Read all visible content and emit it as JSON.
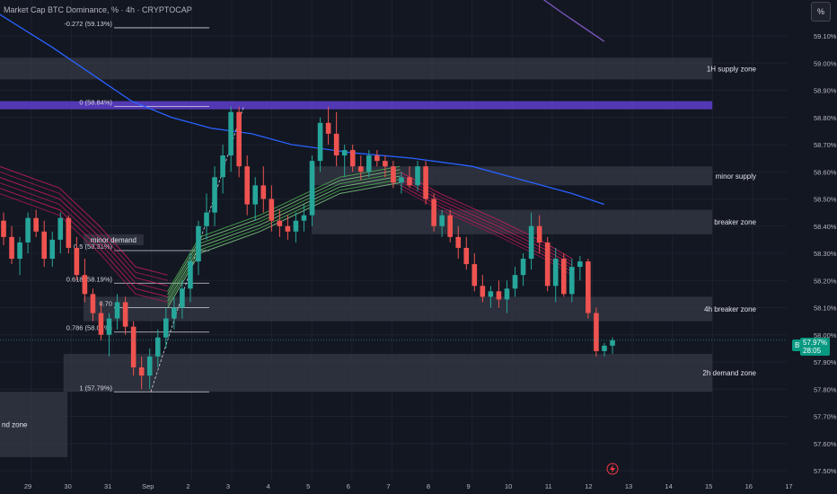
{
  "header": {
    "title": "Market Cap BTC Dominance, % · 4h · CRYPTOCAP",
    "percent_button": "%"
  },
  "price_tag": {
    "symbol": "BTC.D",
    "price": "57.97%",
    "countdown": "28:05"
  },
  "colors": {
    "background": "#131722",
    "bull": "#26a69a",
    "bear": "#ef5350",
    "zone": "#363a45",
    "supply_zone": "#5b3cc4",
    "ma_line": "#2962ff",
    "ma_long": "#7e57c2"
  },
  "chart_data": {
    "type": "candlestick",
    "title": "Market Cap BTC Dominance, % · 4h · CRYPTOCAP",
    "ylim": [
      57.5,
      59.2
    ],
    "y_ticks": [
      "59.10%",
      "59.00%",
      "58.90%",
      "58.80%",
      "58.70%",
      "58.60%",
      "58.50%",
      "58.40%",
      "58.30%",
      "58.20%",
      "58.10%",
      "58.00%",
      "57.90%",
      "57.80%",
      "57.70%",
      "57.60%",
      "57.50%"
    ],
    "y_tick_values": [
      59.1,
      59.0,
      58.9,
      58.8,
      58.7,
      58.6,
      58.5,
      58.4,
      58.3,
      58.2,
      58.1,
      58.0,
      57.9,
      57.8,
      57.7,
      57.6,
      57.5
    ],
    "x_ticks": [
      "29",
      "30",
      "31",
      "Sep",
      "2",
      "3",
      "4",
      "5",
      "6",
      "7",
      "8",
      "9",
      "10",
      "11",
      "12",
      "13",
      "14",
      "15",
      "16",
      "17"
    ],
    "zones": [
      {
        "label": "1H supply zone",
        "y_top": 59.02,
        "y_bot": 58.94,
        "x_start": -1,
        "x_end": 17,
        "color": "zone"
      },
      {
        "label": "",
        "y_top": 58.86,
        "y_bot": 58.83,
        "x_start": -1,
        "x_end": 17,
        "color": "supply"
      },
      {
        "label": "minor supply",
        "y_top": 58.62,
        "y_bot": 58.55,
        "x_start": 7.0,
        "x_end": 17,
        "color": "zone"
      },
      {
        "label": "breaker zone",
        "y_top": 58.46,
        "y_bot": 58.37,
        "x_start": 7.0,
        "x_end": 17,
        "color": "zone"
      },
      {
        "label": "minor demand",
        "y_top": 58.37,
        "y_bot": 58.33,
        "x_start": 1.3,
        "x_end": 2.8,
        "color": "zone"
      },
      {
        "label": "4h breaker zone",
        "y_top": 58.14,
        "y_bot": 58.05,
        "x_start": 1.3,
        "x_end": 17,
        "color": "zone"
      },
      {
        "label": "2h demand zone",
        "y_top": 57.93,
        "y_bot": 57.79,
        "x_start": 0.8,
        "x_end": 17,
        "color": "zone"
      },
      {
        "label": "nd zone",
        "y_top": 57.79,
        "y_bot": 57.55,
        "x_start": -1,
        "x_end": 0.9,
        "color": "zone"
      }
    ],
    "fib_levels": [
      {
        "label": "-0.272 (59.13%)",
        "value": 59.13
      },
      {
        "label": "0 (58.84%)",
        "value": 58.84
      },
      {
        "label": "0.5 (58.31%)",
        "value": 58.31
      },
      {
        "label": "0.618 (58.19%)",
        "value": 58.19
      },
      {
        "label": "0.70",
        "value": 58.1
      },
      {
        "label": "0.786 (58.01%)",
        "value": 58.01
      },
      {
        "label": "1 (57.79%)",
        "value": 57.79
      }
    ],
    "candles": [
      [
        58.42,
        58.45,
        58.33,
        58.36
      ],
      [
        58.36,
        58.4,
        58.26,
        58.28
      ],
      [
        58.28,
        58.36,
        58.22,
        58.34
      ],
      [
        58.34,
        58.45,
        58.3,
        58.43
      ],
      [
        58.43,
        58.46,
        58.36,
        58.38
      ],
      [
        58.38,
        58.42,
        58.25,
        58.28
      ],
      [
        58.28,
        58.38,
        58.25,
        58.35
      ],
      [
        58.35,
        58.45,
        58.3,
        58.43
      ],
      [
        58.43,
        58.44,
        58.3,
        58.32
      ],
      [
        58.32,
        58.36,
        58.2,
        58.22
      ],
      [
        58.22,
        58.28,
        58.12,
        58.15
      ],
      [
        58.15,
        58.17,
        58.05,
        58.08
      ],
      [
        58.08,
        58.12,
        57.98,
        58.0
      ],
      [
        58.0,
        58.08,
        57.92,
        58.06
      ],
      [
        58.06,
        58.15,
        58.02,
        58.12
      ],
      [
        58.12,
        58.14,
        58.0,
        58.03
      ],
      [
        58.03,
        58.05,
        57.85,
        57.88
      ],
      [
        57.88,
        57.92,
        57.8,
        57.85
      ],
      [
        57.85,
        57.95,
        57.8,
        57.92
      ],
      [
        57.92,
        58.02,
        57.88,
        57.99
      ],
      [
        57.99,
        58.1,
        57.95,
        58.06
      ],
      [
        58.06,
        58.14,
        58.02,
        58.1
      ],
      [
        58.1,
        58.2,
        58.06,
        58.17
      ],
      [
        58.17,
        58.3,
        58.12,
        58.27
      ],
      [
        58.27,
        58.42,
        58.22,
        58.4
      ],
      [
        58.4,
        58.52,
        58.35,
        58.45
      ],
      [
        58.45,
        58.62,
        58.4,
        58.58
      ],
      [
        58.58,
        58.7,
        58.52,
        58.66
      ],
      [
        58.66,
        58.84,
        58.6,
        58.82
      ],
      [
        58.82,
        58.84,
        58.58,
        58.62
      ],
      [
        58.62,
        58.66,
        58.44,
        58.48
      ],
      [
        58.48,
        58.58,
        58.42,
        58.55
      ],
      [
        58.55,
        58.62,
        58.45,
        58.5
      ],
      [
        58.5,
        58.55,
        58.38,
        58.42
      ],
      [
        58.42,
        58.46,
        58.36,
        58.4
      ],
      [
        58.4,
        58.44,
        58.35,
        58.38
      ],
      [
        58.38,
        58.45,
        58.34,
        58.42
      ],
      [
        58.42,
        58.48,
        58.38,
        58.44
      ],
      [
        58.44,
        58.66,
        58.4,
        58.64
      ],
      [
        58.64,
        58.8,
        58.6,
        58.78
      ],
      [
        58.78,
        58.84,
        58.7,
        58.74
      ],
      [
        58.74,
        58.82,
        58.62,
        58.66
      ],
      [
        58.66,
        58.7,
        58.58,
        58.68
      ],
      [
        58.68,
        58.7,
        58.6,
        58.62
      ],
      [
        58.62,
        58.66,
        58.57,
        58.6
      ],
      [
        58.6,
        58.68,
        58.58,
        58.66
      ],
      [
        58.66,
        58.68,
        58.62,
        58.64
      ],
      [
        58.64,
        58.66,
        58.58,
        58.62
      ],
      [
        58.62,
        58.64,
        58.54,
        58.56
      ],
      [
        58.56,
        58.6,
        58.52,
        58.58
      ],
      [
        58.58,
        58.62,
        58.54,
        58.55
      ],
      [
        58.55,
        58.64,
        58.53,
        58.62
      ],
      [
        58.62,
        58.64,
        58.48,
        58.5
      ],
      [
        58.5,
        58.52,
        58.38,
        58.4
      ],
      [
        58.4,
        58.46,
        58.36,
        58.44
      ],
      [
        58.44,
        58.46,
        58.34,
        58.36
      ],
      [
        58.36,
        58.4,
        58.28,
        58.32
      ],
      [
        58.32,
        58.36,
        58.24,
        58.26
      ],
      [
        58.26,
        58.3,
        58.16,
        58.18
      ],
      [
        58.18,
        58.22,
        58.12,
        58.14
      ],
      [
        58.14,
        58.18,
        58.1,
        58.16
      ],
      [
        58.16,
        58.2,
        58.1,
        58.13
      ],
      [
        58.13,
        58.2,
        58.08,
        58.17
      ],
      [
        58.17,
        58.25,
        58.14,
        58.22
      ],
      [
        58.22,
        58.3,
        58.18,
        58.28
      ],
      [
        58.28,
        58.45,
        58.24,
        58.4
      ],
      [
        58.4,
        58.44,
        58.3,
        58.34
      ],
      [
        58.34,
        58.36,
        58.16,
        58.18
      ],
      [
        58.18,
        58.32,
        58.12,
        58.28
      ],
      [
        58.28,
        58.3,
        58.14,
        58.15
      ],
      [
        58.15,
        58.28,
        58.12,
        58.25
      ],
      [
        58.25,
        58.29,
        58.2,
        58.27
      ],
      [
        58.27,
        58.28,
        58.06,
        58.08
      ],
      [
        58.08,
        58.1,
        57.92,
        57.94
      ],
      [
        57.94,
        57.97,
        57.92,
        57.96
      ],
      [
        57.96,
        57.99,
        57.93,
        57.98
      ]
    ]
  },
  "ui": {
    "flash_icon": "lightning-icon"
  }
}
